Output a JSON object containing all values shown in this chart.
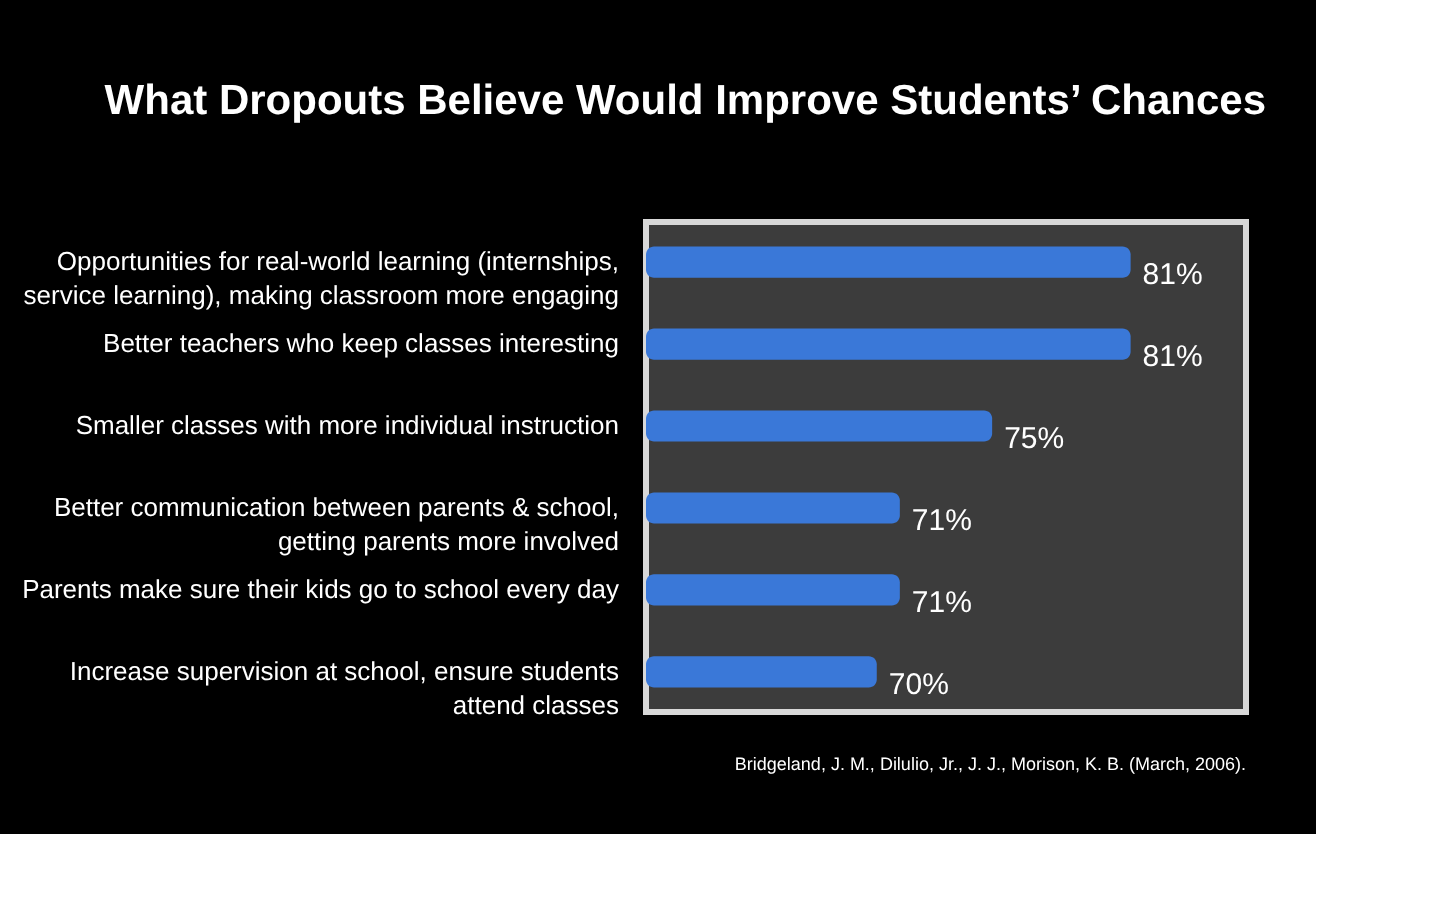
{
  "chart_data": {
    "type": "bar",
    "orientation": "horizontal",
    "title": "What Dropouts Believe Would Improve Students’ Chances",
    "categories": [
      "Opportunities for real-world learning (internships,\nservice learning), making classroom more engaging",
      "Better teachers who keep classes interesting",
      "Smaller classes with more individual instruction",
      "Better communication between parents & school,\ngetting parents more involved",
      "Parents make sure their kids go to school every day",
      "Increase supervision at school, ensure students\nattend classes"
    ],
    "values": [
      81,
      81,
      75,
      71,
      71,
      70
    ],
    "value_labels": [
      "81%",
      "81%",
      "75%",
      "71%",
      "71%",
      "70%"
    ],
    "color": "#3a78d8",
    "xlim": [
      60,
      86
    ],
    "tick_labels": "y",
    "annotations": [
      "Bridgeland, J. M., Dilulio, Jr., J. J., Morison, K. B. (March, 2006)."
    ]
  }
}
